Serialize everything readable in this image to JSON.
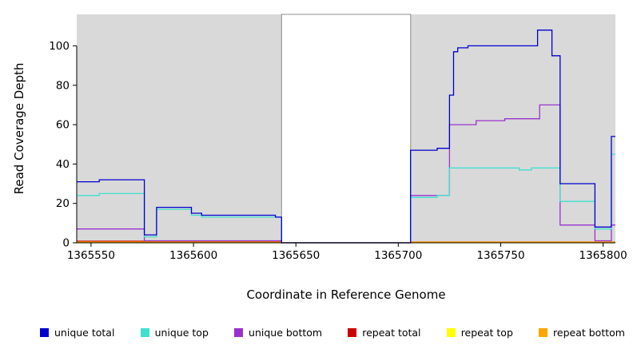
{
  "chart_data": {
    "type": "line",
    "title": "",
    "xlabel": "Coordinate in Reference Genome",
    "ylabel": "Read Coverage Depth",
    "xlim": [
      1365543,
      1365806
    ],
    "ylim": [
      0,
      116
    ],
    "xticks": [
      1365550,
      1365600,
      1365650,
      1365700,
      1365750,
      1365800
    ],
    "yticks": [
      0,
      20,
      40,
      60,
      80,
      100
    ],
    "grid": false,
    "legend_position": "bottom",
    "plot_background": "#d9d9d9",
    "masked_region": {
      "x0": 1365643,
      "x1": 1365706,
      "fill": "#ffffff",
      "border": "#8c8c8c"
    },
    "line_style": "step-after",
    "series": [
      {
        "name": "unique total",
        "color": "#0000cd",
        "steps": [
          [
            1365543,
            31
          ],
          [
            1365554,
            32
          ],
          [
            1365576,
            4
          ],
          [
            1365582,
            18
          ],
          [
            1365599,
            15
          ],
          [
            1365604,
            14
          ],
          [
            1365640,
            13
          ],
          [
            1365643,
            0
          ],
          [
            1365706,
            47
          ],
          [
            1365719,
            48
          ],
          [
            1365725,
            75
          ],
          [
            1365727,
            97
          ],
          [
            1365729,
            99
          ],
          [
            1365734,
            100
          ],
          [
            1365768,
            108
          ],
          [
            1365775,
            95
          ],
          [
            1365779,
            30
          ],
          [
            1365796,
            8
          ],
          [
            1365804,
            54
          ]
        ]
      },
      {
        "name": "unique top",
        "color": "#40e0d0",
        "steps": [
          [
            1365543,
            24
          ],
          [
            1365554,
            25
          ],
          [
            1365576,
            3
          ],
          [
            1365582,
            17
          ],
          [
            1365599,
            14
          ],
          [
            1365604,
            13
          ],
          [
            1365643,
            0
          ],
          [
            1365706,
            23
          ],
          [
            1365719,
            24
          ],
          [
            1365725,
            38
          ],
          [
            1365759,
            37
          ],
          [
            1365765,
            38
          ],
          [
            1365779,
            21
          ],
          [
            1365796,
            7
          ],
          [
            1365804,
            45
          ]
        ]
      },
      {
        "name": "unique bottom",
        "color": "#9932cc",
        "steps": [
          [
            1365543,
            7
          ],
          [
            1365576,
            1
          ],
          [
            1365643,
            0
          ],
          [
            1365706,
            24
          ],
          [
            1365725,
            60
          ],
          [
            1365738,
            62
          ],
          [
            1365752,
            63
          ],
          [
            1365769,
            70
          ],
          [
            1365779,
            9
          ],
          [
            1365796,
            1
          ],
          [
            1365804,
            9
          ]
        ]
      },
      {
        "name": "repeat total",
        "color": "#cd0000",
        "steps": [
          [
            1365543,
            0.8
          ],
          [
            1365643,
            0
          ],
          [
            1365706,
            0.4
          ]
        ]
      },
      {
        "name": "repeat top",
        "color": "#ffff00",
        "steps": [
          [
            1365543,
            0
          ]
        ]
      },
      {
        "name": "repeat bottom",
        "color": "#ffa500",
        "steps": [
          [
            1365543,
            0.4
          ],
          [
            1365643,
            0
          ],
          [
            1365706,
            0.4
          ]
        ]
      }
    ],
    "draw_order": [
      4,
      3,
      5,
      2,
      1,
      0
    ]
  }
}
